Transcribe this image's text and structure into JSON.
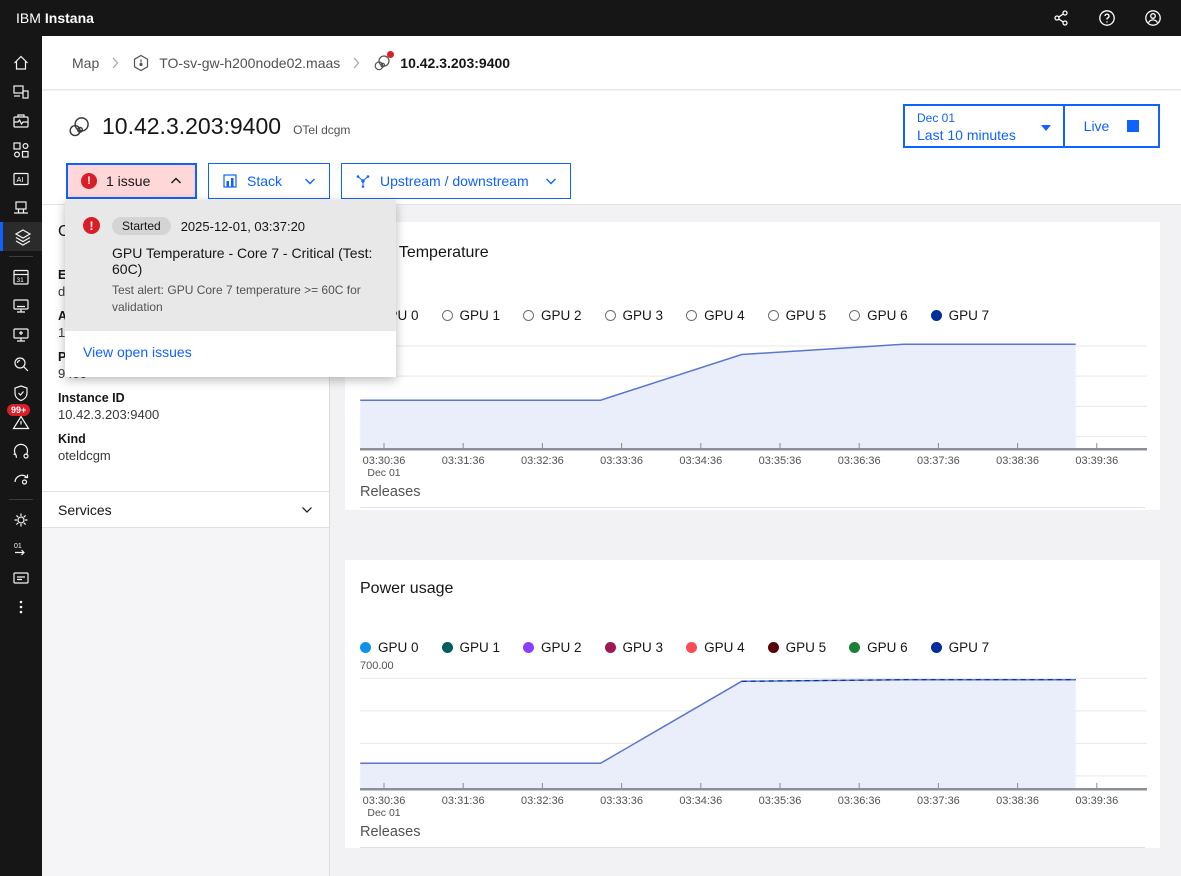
{
  "topbar": {
    "brand": "IBM",
    "product": "Instana",
    "icons": [
      "share-icon",
      "help-icon",
      "user-avatar-icon"
    ]
  },
  "sidebar": {
    "alert_badge": "99+",
    "icons": [
      "home-icon",
      "custom-dashboards-icon",
      "applications-icon",
      "services-icon",
      "ai-icon",
      "platforms-icon",
      "layers-icon",
      "calendar-dashboard-icon",
      "infrastructure-icon",
      "infrastructure-analytics-icon",
      "analytics-search-icon",
      "security-shield-icon",
      "events-warning-icon",
      "automation-icon",
      "calibrate-icon",
      "settings-gear-icon",
      "binary-flow-icon",
      "billing-icon",
      "overflow-menu-icon"
    ]
  },
  "breadcrumb": {
    "map": "Map",
    "host": "TO-sv-gw-h200node02.maas",
    "entity": "10.42.3.203:9400"
  },
  "header": {
    "title": "10.42.3.203:9400",
    "type_label": "OTel dcgm",
    "issues_button": "1 issue",
    "stack_button": "Stack",
    "upstream_button": "Upstream / downstream",
    "time_date": "Dec 01",
    "time_range": "Last 10 minutes",
    "live_button": "Live"
  },
  "issue_popup": {
    "status": "Started",
    "timestamp": "2025-12-01, 03:37:20",
    "title": "GPU Temperature - Core 7 - Critical (Test: 60C)",
    "description": "Test alert: GPU Core 7 temperature >= 60C for validation",
    "link": "View open issues"
  },
  "side_panel": {
    "section_title_fragment": "O",
    "field1_label_fragment": "E",
    "field1_value_fragment": "d",
    "field2_label_fragment": "A",
    "field2_value_fragment": "1",
    "port_label": "Port",
    "port_value": "9400",
    "instance_label": "Instance ID",
    "instance_value": "10.42.3.203:9400",
    "kind_label": "Kind",
    "kind_value": "oteldcgm",
    "services_label": "Services"
  },
  "colors": {
    "accent": "#0f62fe",
    "danger": "#da1e28",
    "issue_button_bg": "#ffd7d9",
    "chart_line": "#5b76cf",
    "chart_fill": "#e9eefa",
    "topbar_bg": "#161616"
  },
  "chart_data": [
    {
      "type": "area",
      "title": "GPU Temperature",
      "releases_label": "Releases",
      "legend_position": "top",
      "grid": true,
      "legend": [
        {
          "label": "GPU 0",
          "selected": false
        },
        {
          "label": "GPU 1",
          "selected": false
        },
        {
          "label": "GPU 2",
          "selected": false
        },
        {
          "label": "GPU 3",
          "selected": false
        },
        {
          "label": "GPU 4",
          "selected": false
        },
        {
          "label": "GPU 5",
          "selected": false
        },
        {
          "label": "GPU 6",
          "selected": false
        },
        {
          "label": "GPU 7",
          "selected": true,
          "color": "#002d9c"
        }
      ],
      "x_ticks": [
        "03:30:36",
        "03:31:36",
        "03:32:36",
        "03:33:36",
        "03:34:36",
        "03:35:36",
        "03:36:36",
        "03:37:36",
        "03:38:36",
        "03:39:36"
      ],
      "x_sub_label": "Dec 01",
      "ylim": [
        10,
        62
      ],
      "series": [
        {
          "name": "GPU 7",
          "color": "#5b76cf",
          "fill": "#e9eefa",
          "points": [
            [
              "03:30:18",
              33
            ],
            [
              "03:33:20",
              33
            ],
            [
              "03:35:07",
              55
            ],
            [
              "03:37:10",
              60
            ],
            [
              "03:39:20",
              60
            ]
          ]
        }
      ]
    },
    {
      "type": "area",
      "title": "Power usage",
      "y_top_label": "700.00",
      "releases_label": "Releases",
      "legend_position": "top",
      "grid": true,
      "legend": [
        {
          "label": "GPU 0",
          "selected": true,
          "color": "#1192e8"
        },
        {
          "label": "GPU 1",
          "selected": true,
          "color": "#005d5d"
        },
        {
          "label": "GPU 2",
          "selected": true,
          "color": "#8a3ffc"
        },
        {
          "label": "GPU 3",
          "selected": true,
          "color": "#9f1853"
        },
        {
          "label": "GPU 4",
          "selected": true,
          "color": "#fa4d56"
        },
        {
          "label": "GPU 5",
          "selected": true,
          "color": "#570408"
        },
        {
          "label": "GPU 6",
          "selected": true,
          "color": "#198038"
        },
        {
          "label": "GPU 7",
          "selected": true,
          "color": "#002d9c"
        }
      ],
      "x_ticks": [
        "03:30:36",
        "03:31:36",
        "03:32:36",
        "03:33:36",
        "03:34:36",
        "03:35:36",
        "03:36:36",
        "03:37:36",
        "03:38:36",
        "03:39:36"
      ],
      "x_sub_label": "Dec 01",
      "ylim": [
        0,
        750
      ],
      "series": [
        {
          "name": "GPU 0-7 (overlapping)",
          "color": "#5b76cf",
          "fill": "#e9eefa",
          "overlay_dashed_color": "#002d9c",
          "points": [
            [
              "03:30:18",
              160
            ],
            [
              "03:33:20",
              160
            ],
            [
              "03:35:07",
              690
            ],
            [
              "03:37:10",
              700
            ],
            [
              "03:39:20",
              700
            ]
          ]
        }
      ]
    }
  ]
}
